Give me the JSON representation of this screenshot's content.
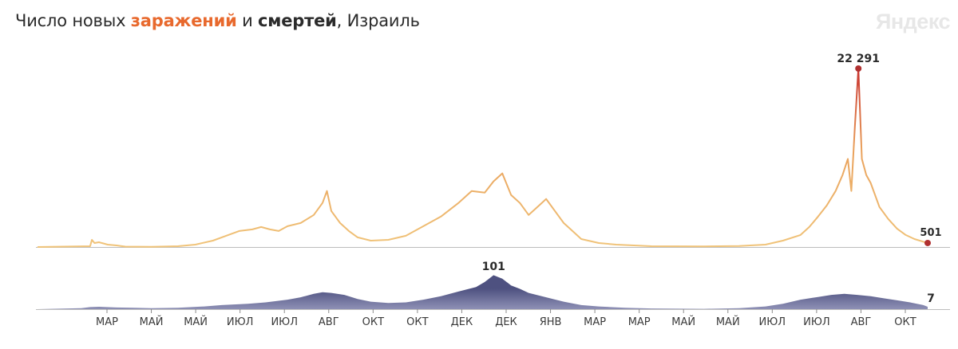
{
  "header": {
    "title_prefix": "Число новых ",
    "title_cases": "заражений",
    "title_mid": " и ",
    "title_deaths": "смертей",
    "title_suffix": ", Израиль",
    "brand": "Яндекс"
  },
  "colors": {
    "cases_low": "#f0c47a",
    "cases_mid": "#e9a05a",
    "cases_high": "#c8322e",
    "deaths_fill": "#4e5180",
    "deaths_fill_light": "#8e90b5",
    "axis": "#8c8c8c",
    "marker": "#b03030"
  },
  "chart_data": [
    {
      "type": "line",
      "title": "Число новых заражений",
      "x_axis": "date",
      "x_ticks": [
        "МАР",
        "МАЙ",
        "МАЙ",
        "ИЮЛ",
        "ИЮЛ",
        "АВГ",
        "ОКТ",
        "ОКТ",
        "ДЕК",
        "ДЕК",
        "ЯНВ",
        "МАР",
        "МАР",
        "МАЙ",
        "МАЙ",
        "ИЮЛ",
        "ИЮЛ",
        "АВГ",
        "ОКТ"
      ],
      "points": [
        [
          0,
          0
        ],
        [
          60,
          100
        ],
        [
          62,
          900
        ],
        [
          65,
          500
        ],
        [
          70,
          600
        ],
        [
          80,
          300
        ],
        [
          90,
          200
        ],
        [
          100,
          50
        ],
        [
          130,
          20
        ],
        [
          160,
          100
        ],
        [
          180,
          300
        ],
        [
          200,
          800
        ],
        [
          215,
          1400
        ],
        [
          230,
          2000
        ],
        [
          245,
          2200
        ],
        [
          255,
          2500
        ],
        [
          265,
          2200
        ],
        [
          275,
          2000
        ],
        [
          285,
          2600
        ],
        [
          300,
          3000
        ],
        [
          315,
          4000
        ],
        [
          325,
          5500
        ],
        [
          330,
          7000
        ],
        [
          335,
          4500
        ],
        [
          345,
          3000
        ],
        [
          355,
          2000
        ],
        [
          365,
          1200
        ],
        [
          380,
          800
        ],
        [
          400,
          900
        ],
        [
          420,
          1400
        ],
        [
          440,
          2600
        ],
        [
          460,
          3800
        ],
        [
          480,
          5500
        ],
        [
          495,
          7000
        ],
        [
          510,
          6800
        ],
        [
          520,
          8200
        ],
        [
          530,
          9200
        ],
        [
          540,
          6500
        ],
        [
          550,
          5500
        ],
        [
          560,
          4000
        ],
        [
          570,
          5000
        ],
        [
          580,
          6000
        ],
        [
          590,
          4500
        ],
        [
          600,
          3000
        ],
        [
          610,
          2000
        ],
        [
          620,
          1000
        ],
        [
          640,
          500
        ],
        [
          660,
          300
        ],
        [
          700,
          100
        ],
        [
          760,
          80
        ],
        [
          800,
          120
        ],
        [
          830,
          300
        ],
        [
          850,
          800
        ],
        [
          870,
          1500
        ],
        [
          880,
          2500
        ],
        [
          890,
          3800
        ],
        [
          900,
          5200
        ],
        [
          910,
          7000
        ],
        [
          918,
          9000
        ],
        [
          924,
          11000
        ],
        [
          928,
          7000
        ],
        [
          932,
          15000
        ],
        [
          936,
          22291
        ],
        [
          940,
          11000
        ],
        [
          945,
          9000
        ],
        [
          950,
          8000
        ],
        [
          955,
          6500
        ],
        [
          960,
          5000
        ],
        [
          970,
          3500
        ],
        [
          980,
          2300
        ],
        [
          990,
          1500
        ],
        [
          1000,
          1000
        ],
        [
          1015,
          501
        ]
      ],
      "last_point_label": "501",
      "peak_label": "22 291",
      "peak_value": 22291,
      "last_value": 501,
      "ylim": [
        0,
        23000
      ]
    },
    {
      "type": "area",
      "title": "Число новых смертей",
      "points": [
        [
          0,
          0
        ],
        [
          50,
          3
        ],
        [
          60,
          6
        ],
        [
          70,
          7
        ],
        [
          90,
          5
        ],
        [
          110,
          4
        ],
        [
          130,
          3
        ],
        [
          160,
          4
        ],
        [
          190,
          8
        ],
        [
          210,
          12
        ],
        [
          240,
          16
        ],
        [
          260,
          20
        ],
        [
          285,
          28
        ],
        [
          300,
          35
        ],
        [
          315,
          45
        ],
        [
          325,
          50
        ],
        [
          335,
          48
        ],
        [
          350,
          42
        ],
        [
          365,
          30
        ],
        [
          380,
          22
        ],
        [
          400,
          18
        ],
        [
          420,
          20
        ],
        [
          440,
          28
        ],
        [
          460,
          38
        ],
        [
          480,
          52
        ],
        [
          500,
          65
        ],
        [
          510,
          80
        ],
        [
          520,
          100
        ],
        [
          530,
          90
        ],
        [
          540,
          70
        ],
        [
          550,
          60
        ],
        [
          560,
          48
        ],
        [
          580,
          35
        ],
        [
          600,
          22
        ],
        [
          620,
          12
        ],
        [
          640,
          8
        ],
        [
          670,
          4
        ],
        [
          700,
          2
        ],
        [
          760,
          1
        ],
        [
          800,
          3
        ],
        [
          830,
          8
        ],
        [
          850,
          16
        ],
        [
          870,
          28
        ],
        [
          890,
          36
        ],
        [
          905,
          42
        ],
        [
          920,
          45
        ],
        [
          935,
          42
        ],
        [
          950,
          38
        ],
        [
          965,
          32
        ],
        [
          980,
          26
        ],
        [
          995,
          20
        ],
        [
          1010,
          12
        ],
        [
          1015,
          7
        ]
      ],
      "peak_label": "101",
      "peak_value": 101,
      "last_point_label": "7",
      "last_value": 7,
      "ylim": [
        0,
        110
      ]
    }
  ]
}
